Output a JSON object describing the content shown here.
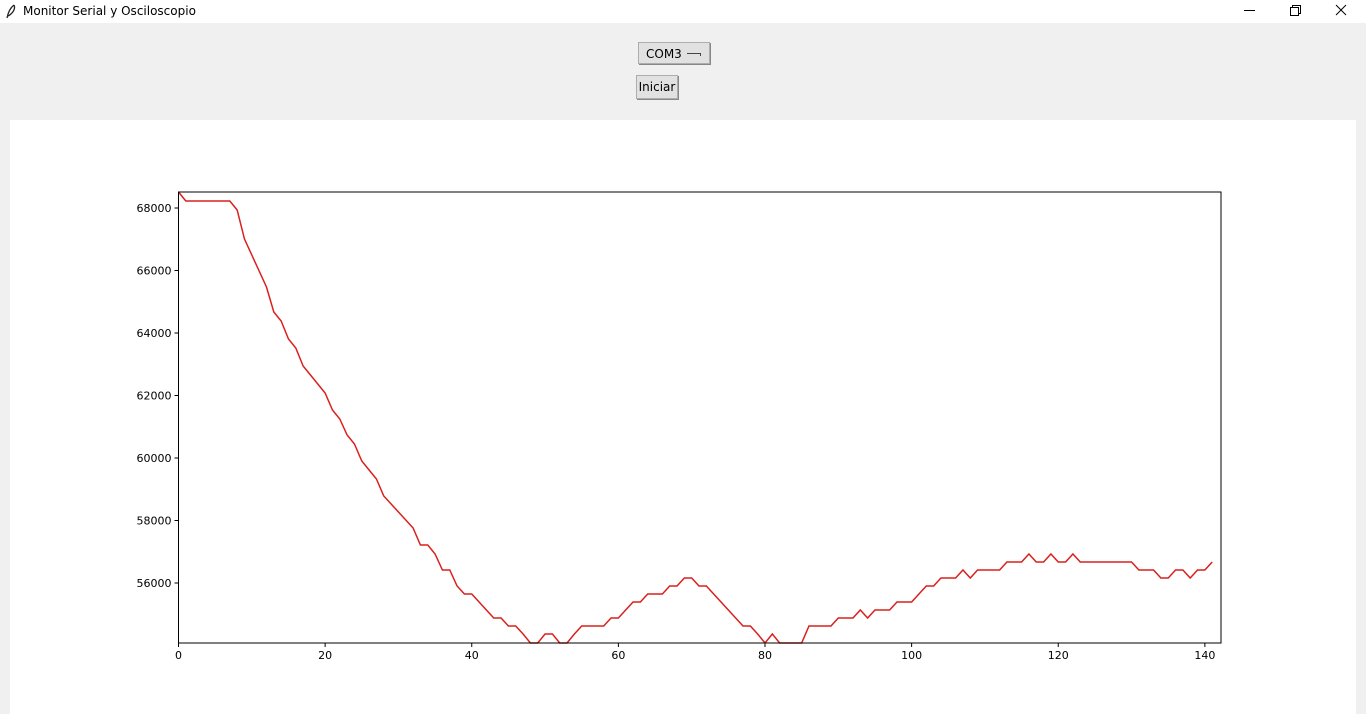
{
  "window": {
    "title": "Monitor Serial y Osciloscopio"
  },
  "controls": {
    "port": "COM3",
    "button": "Iniciar"
  },
  "chart_data": {
    "type": "line",
    "color": "#d9201c",
    "x": [
      0,
      1,
      2,
      3,
      4,
      5,
      6,
      7,
      8,
      9,
      10,
      11,
      12,
      13,
      14,
      15,
      16,
      17,
      18,
      19,
      20,
      21,
      22,
      23,
      24,
      25,
      26,
      27,
      28,
      29,
      30,
      31,
      32,
      33,
      34,
      35,
      36,
      37,
      38,
      39,
      40,
      41,
      42,
      43,
      44,
      45,
      46,
      47,
      48,
      49,
      50,
      51,
      52,
      53,
      54,
      55,
      56,
      57,
      58,
      59,
      60,
      61,
      62,
      63,
      64,
      65,
      66,
      67,
      68,
      69,
      70,
      71,
      72,
      73,
      74,
      75,
      76,
      77,
      78,
      79,
      80,
      81,
      82,
      83,
      84,
      85,
      86,
      87,
      88,
      89,
      90,
      91,
      92,
      93,
      94,
      95,
      96,
      97,
      98,
      99,
      100,
      101,
      102,
      103,
      104,
      105,
      106,
      107,
      108,
      109,
      110,
      111,
      112,
      113,
      114,
      115,
      116,
      117,
      118,
      119,
      120,
      121,
      122,
      123,
      124,
      125,
      126,
      127,
      128,
      129,
      130,
      131,
      132,
      133,
      134,
      135,
      136,
      137,
      138,
      139,
      140,
      141
    ],
    "values": [
      68512,
      68224,
      68224,
      68224,
      68224,
      68224,
      68224,
      68224,
      67936,
      67008,
      66496,
      65984,
      65472,
      64672,
      64384,
      63808,
      63520,
      62944,
      62656,
      62368,
      62080,
      61536,
      61248,
      60736,
      60448,
      59904,
      59616,
      59328,
      58784,
      58528,
      58272,
      58016,
      57760,
      57216,
      57216,
      56928,
      56416,
      56416,
      55904,
      55648,
      55648,
      55392,
      55136,
      54880,
      54880,
      54624,
      54624,
      54368,
      54080,
      54080,
      54368,
      54368,
      54080,
      54080,
      54368,
      54624,
      54624,
      54624,
      54624,
      54880,
      54880,
      55136,
      55392,
      55392,
      55648,
      55648,
      55648,
      55904,
      55904,
      56160,
      56160,
      55904,
      55904,
      55648,
      55392,
      55136,
      54880,
      54624,
      54624,
      54368,
      54080,
      54368,
      54080,
      54080,
      54080,
      54080,
      54624,
      54624,
      54624,
      54624,
      54880,
      54880,
      54880,
      55136,
      54880,
      55136,
      55136,
      55136,
      55392,
      55392,
      55392,
      55648,
      55904,
      55904,
      56160,
      56160,
      56160,
      56416,
      56160,
      56416,
      56416,
      56416,
      56416,
      56672,
      56672,
      56672,
      56928,
      56672,
      56672,
      56928,
      56672,
      56672,
      56928,
      56672,
      56672,
      56672,
      56672,
      56672,
      56672,
      56672,
      56672,
      56416,
      56416,
      56416,
      56160,
      56160,
      56416,
      56416,
      56160,
      56416,
      56416,
      56672
    ],
    "xlim": [
      0,
      142.2
    ],
    "ylim": [
      54080,
      68512
    ],
    "xticks": [
      0,
      20,
      40,
      60,
      80,
      100,
      120,
      140
    ],
    "yticks": [
      56000,
      58000,
      60000,
      62000,
      64000,
      66000,
      68000
    ]
  }
}
